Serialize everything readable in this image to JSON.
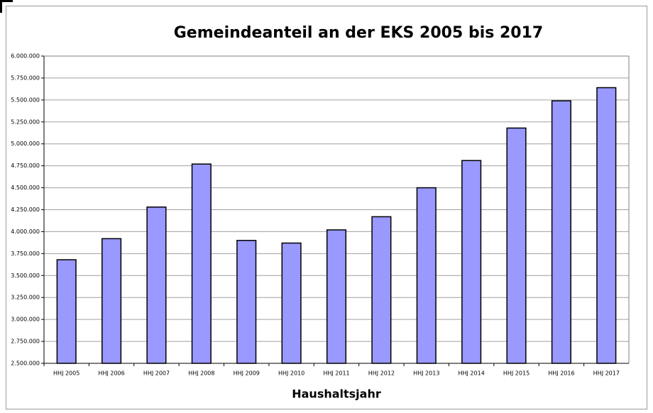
{
  "chart_data": {
    "type": "bar",
    "title": "Gemeindeanteil an der EKS 2005 bis 2017",
    "x_label": "Haushaltsjahr",
    "categories": [
      "HHJ 2005",
      "HHJ 2006",
      "HHJ 2007",
      "HHJ 2008",
      "HHJ 2009",
      "HHJ 2010",
      "HHJ 2011",
      "HHJ 2012",
      "HHJ 2013",
      "HHJ 2014",
      "HHJ 2015",
      "HHJ 2016",
      "HHJ 2017"
    ],
    "values": [
      3680000,
      3920000,
      4280000,
      4770000,
      3900000,
      3870000,
      4020000,
      4170000,
      4500000,
      4810000,
      5180000,
      5490000,
      5640000
    ],
    "color": "#9999ff",
    "ylim": [
      2500000,
      6000000
    ],
    "yticks": [
      {
        "value": 2500000,
        "label": "2.500.000"
      },
      {
        "value": 2750000,
        "label": "2.750.000"
      },
      {
        "value": 3000000,
        "label": "3.000.000"
      },
      {
        "value": 3250000,
        "label": "3.250.000"
      },
      {
        "value": 3500000,
        "label": "3.500.000"
      },
      {
        "value": 3750000,
        "label": "3.750.000"
      },
      {
        "value": 4000000,
        "label": "4.000.000"
      },
      {
        "value": 4250000,
        "label": "4.250.000"
      },
      {
        "value": 4500000,
        "label": "4.500.000"
      },
      {
        "value": 4750000,
        "label": "4.750.000"
      },
      {
        "value": 5000000,
        "label": "5.000.000"
      },
      {
        "value": 5250000,
        "label": "5.250.000"
      },
      {
        "value": 5500000,
        "label": "5.500.000"
      },
      {
        "value": 5750000,
        "label": "5.750.000"
      },
      {
        "value": 6000000,
        "label": "6.000.000"
      }
    ],
    "grid": true
  }
}
